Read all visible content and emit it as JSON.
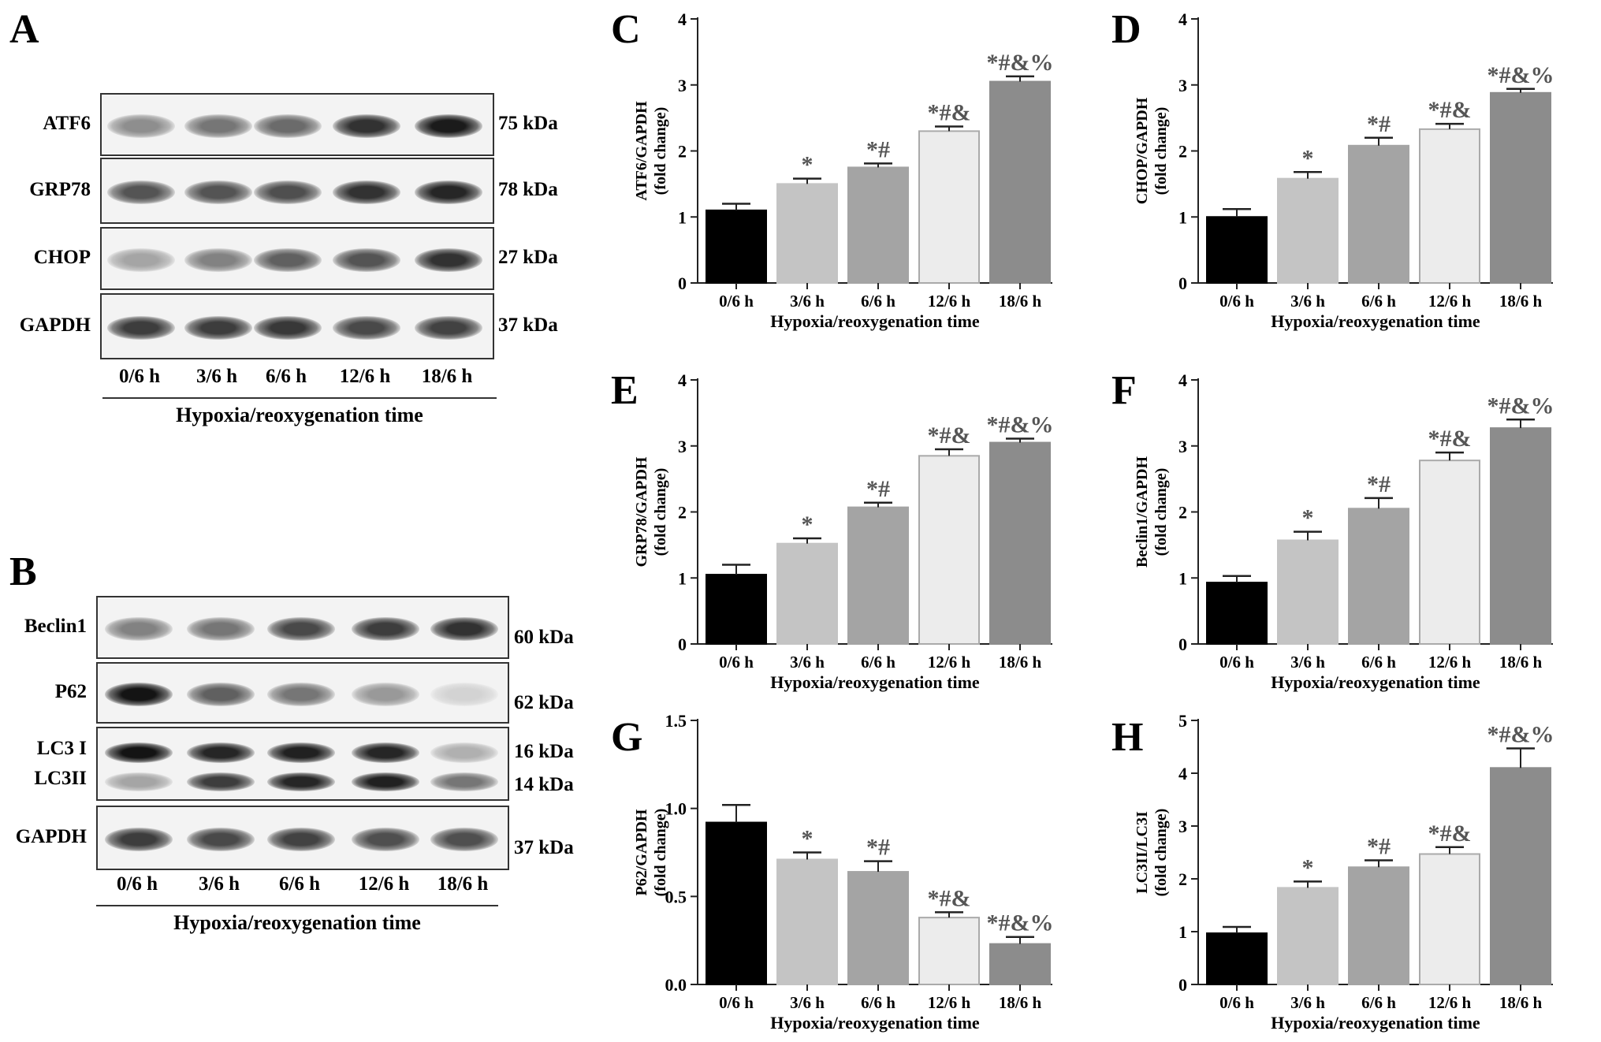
{
  "panels": {
    "A": "A",
    "B": "B",
    "C": "C",
    "D": "D",
    "E": "E",
    "F": "F",
    "G": "G",
    "H": "H"
  },
  "blot_A": {
    "rows": [
      {
        "label": "ATF6",
        "kda": "75 kDa",
        "intensity": [
          0.45,
          0.55,
          0.6,
          0.85,
          0.95
        ]
      },
      {
        "label": "GRP78",
        "kda": "78 kDa",
        "intensity": [
          0.7,
          0.7,
          0.72,
          0.85,
          0.9
        ]
      },
      {
        "label": "CHOP",
        "kda": "27 kDa",
        "intensity": [
          0.35,
          0.5,
          0.65,
          0.7,
          0.85
        ]
      },
      {
        "label": "GAPDH",
        "kda": "37 kDa",
        "intensity": [
          0.8,
          0.8,
          0.82,
          0.75,
          0.78
        ]
      }
    ],
    "lanes": [
      "0/6 h",
      "3/6 h",
      "6/6 h",
      "12/6 h",
      "18/6 h"
    ],
    "axis_title": "Hypoxia/reoxygenation time"
  },
  "blot_B": {
    "rows": [
      {
        "label": "Beclin1",
        "kda": "60 kDa",
        "intensity": [
          0.5,
          0.55,
          0.75,
          0.8,
          0.85
        ]
      },
      {
        "label": "P62",
        "kda": "62 kDa",
        "intensity": [
          0.98,
          0.65,
          0.55,
          0.4,
          0.15
        ]
      },
      {
        "label": "LC3 I",
        "label2": "LC3II",
        "kda": "16 kDa",
        "kda2": "14 kDa",
        "intensity": [
          0.98,
          0.9,
          0.92,
          0.9,
          0.3
        ],
        "intensity2": [
          0.35,
          0.8,
          0.9,
          0.92,
          0.55
        ]
      },
      {
        "label": "GAPDH",
        "kda": "37 kDa",
        "intensity": [
          0.8,
          0.75,
          0.78,
          0.72,
          0.72
        ]
      }
    ],
    "lanes": [
      "0/6 h",
      "3/6 h",
      "6/6 h",
      "12/6 h",
      "18/6 h"
    ],
    "axis_title": "Hypoxia/reoxygenation time"
  },
  "colors": {
    "bars": [
      "#000000",
      "#c4c4c4",
      "#a4a4a4",
      "#ececec",
      "#8c8c8c"
    ],
    "sig": "#555555"
  },
  "chart_data": [
    {
      "panel": "C",
      "type": "bar",
      "ylabel": "ATF6/GAPDH",
      "ylabel2": "(fold change)",
      "xlabel": "Hypoxia/reoxygenation time",
      "categories": [
        "0/6 h",
        "3/6 h",
        "6/6 h",
        "12/6 h",
        "18/6 h"
      ],
      "values": [
        1.1,
        1.5,
        1.75,
        2.3,
        3.05
      ],
      "errors": [
        0.1,
        0.08,
        0.06,
        0.07,
        0.08
      ],
      "sig": [
        "",
        "*",
        "*#",
        "*#&",
        "*#&%"
      ],
      "ylim": [
        0,
        4
      ],
      "yticks": [
        "0",
        "1",
        "2",
        "3",
        "4"
      ]
    },
    {
      "panel": "D",
      "type": "bar",
      "ylabel": "CHOP/GAPDH",
      "ylabel2": "(fold change)",
      "xlabel": "Hypoxia/reoxygenation time",
      "categories": [
        "0/6 h",
        "3/6 h",
        "6/6 h",
        "12/6 h",
        "18/6 h"
      ],
      "values": [
        1.0,
        1.58,
        2.08,
        2.33,
        2.88
      ],
      "errors": [
        0.12,
        0.1,
        0.12,
        0.08,
        0.06
      ],
      "sig": [
        "",
        "*",
        "*#",
        "*#&",
        "*#&%"
      ],
      "ylim": [
        0,
        4
      ],
      "yticks": [
        "0",
        "1",
        "2",
        "3",
        "4"
      ]
    },
    {
      "panel": "E",
      "type": "bar",
      "ylabel": "GRP78/GAPDH",
      "ylabel2": "(fold change)",
      "xlabel": "Hypoxia/reoxygenation time",
      "categories": [
        "0/6 h",
        "3/6 h",
        "6/6 h",
        "12/6 h",
        "18/6 h"
      ],
      "values": [
        1.05,
        1.52,
        2.07,
        2.85,
        3.05
      ],
      "errors": [
        0.15,
        0.08,
        0.07,
        0.1,
        0.06
      ],
      "sig": [
        "",
        "*",
        "*#",
        "*#&",
        "*#&%"
      ],
      "ylim": [
        0,
        4
      ],
      "yticks": [
        "0",
        "1",
        "2",
        "3",
        "4"
      ]
    },
    {
      "panel": "F",
      "type": "bar",
      "ylabel": "Beclin1/GAPDH",
      "ylabel2": "(fold change)",
      "xlabel": "Hypoxia/reoxygenation time",
      "categories": [
        "0/6 h",
        "3/6 h",
        "6/6 h",
        "12/6 h",
        "18/6 h"
      ],
      "values": [
        0.93,
        1.57,
        2.05,
        2.78,
        3.27
      ],
      "errors": [
        0.1,
        0.13,
        0.16,
        0.12,
        0.13
      ],
      "sig": [
        "",
        "*",
        "*#",
        "*#&",
        "*#&%"
      ],
      "ylim": [
        0,
        4
      ],
      "yticks": [
        "0",
        "1",
        "2",
        "3",
        "4"
      ]
    },
    {
      "panel": "G",
      "type": "bar",
      "ylabel": "P62/GAPDH",
      "ylabel2": "(fold change)",
      "xlabel": "Hypoxia/reoxygenation time",
      "categories": [
        "0/6 h",
        "3/6 h",
        "6/6 h",
        "12/6 h",
        "18/6 h"
      ],
      "values": [
        0.92,
        0.71,
        0.64,
        0.38,
        0.23
      ],
      "errors": [
        0.1,
        0.04,
        0.06,
        0.03,
        0.04
      ],
      "sig": [
        "",
        "*",
        "*#",
        "*#&",
        "*#&%"
      ],
      "ylim": [
        0,
        1.5
      ],
      "yticks": [
        "0.0",
        "0.5",
        "1.0",
        "1.5"
      ]
    },
    {
      "panel": "H",
      "type": "bar",
      "ylabel": "LC3II/LC3I",
      "ylabel2": "(fold change)",
      "xlabel": "Hypoxia/reoxygenation time",
      "categories": [
        "0/6 h",
        "3/6 h",
        "6/6 h",
        "12/6 h",
        "18/6 h"
      ],
      "values": [
        0.97,
        1.83,
        2.22,
        2.47,
        4.1
      ],
      "errors": [
        0.12,
        0.12,
        0.13,
        0.13,
        0.37
      ],
      "sig": [
        "",
        "*",
        "*#",
        "*#&",
        "*#&%"
      ],
      "ylim": [
        0,
        5
      ],
      "yticks": [
        "0",
        "1",
        "2",
        "3",
        "4",
        "5"
      ]
    }
  ]
}
